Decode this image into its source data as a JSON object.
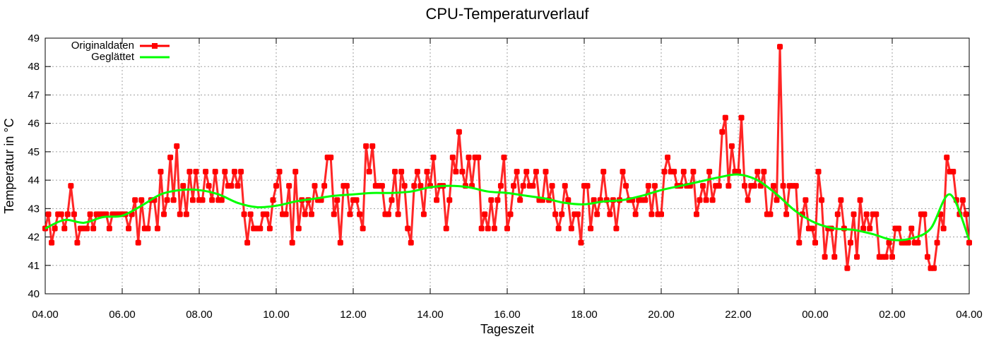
{
  "chart_data": {
    "type": "line",
    "title": "CPU-Temperaturverlauf",
    "xlabel": "Tageszeit",
    "ylabel": "Temperatur in °C",
    "ylim": [
      40,
      49
    ],
    "yticks": [
      "40",
      "41",
      "42",
      "43",
      "44",
      "45",
      "46",
      "47",
      "48",
      "49"
    ],
    "xticks": [
      "04.00",
      "06.00",
      "08.00",
      "10.00",
      "12.00",
      "14.00",
      "16.00",
      "18.00",
      "20.00",
      "22.00",
      "00.00",
      "02.00",
      "04.00"
    ],
    "xlim_hours": [
      0,
      24
    ],
    "grid": true,
    "legend_position": "top-left",
    "series": [
      {
        "name": "Originaldaten",
        "color": "#ff0000",
        "interval_minutes": 5,
        "values": [
          42.3,
          42.8,
          41.8,
          42.3,
          42.8,
          42.8,
          42.3,
          42.8,
          43.8,
          42.8,
          41.8,
          42.3,
          42.3,
          42.3,
          42.8,
          42.3,
          42.8,
          42.8,
          42.8,
          42.8,
          42.3,
          42.8,
          42.8,
          42.8,
          42.8,
          42.8,
          42.3,
          42.8,
          43.3,
          41.8,
          43.3,
          42.3,
          42.3,
          43.3,
          43.3,
          42.3,
          44.3,
          42.8,
          43.3,
          44.8,
          43.3,
          45.2,
          42.8,
          43.8,
          42.8,
          44.3,
          43.3,
          44.3,
          43.3,
          43.3,
          44.3,
          43.8,
          43.3,
          44.3,
          43.3,
          43.3,
          44.3,
          43.8,
          43.8,
          44.3,
          43.8,
          44.3,
          42.8,
          41.8,
          42.8,
          42.3,
          42.3,
          42.3,
          42.8,
          42.8,
          42.3,
          43.3,
          43.8,
          44.3,
          42.8,
          42.8,
          43.8,
          41.8,
          44.3,
          42.3,
          43.3,
          42.8,
          43.3,
          42.8,
          43.8,
          43.3,
          43.3,
          43.8,
          44.8,
          44.8,
          42.8,
          43.3,
          41.8,
          43.8,
          43.8,
          42.8,
          43.3,
          43.3,
          42.8,
          42.3,
          45.2,
          44.3,
          45.2,
          43.8,
          43.8,
          43.8,
          42.8,
          42.8,
          43.3,
          44.3,
          42.8,
          44.3,
          43.8,
          42.3,
          41.8,
          43.8,
          44.3,
          43.8,
          42.8,
          44.3,
          43.8,
          44.8,
          43.3,
          43.8,
          43.8,
          42.3,
          43.3,
          44.8,
          44.3,
          45.7,
          44.3,
          43.8,
          44.8,
          43.8,
          44.8,
          44.8,
          42.3,
          42.8,
          42.3,
          43.3,
          42.3,
          43.3,
          43.8,
          44.8,
          42.3,
          42.8,
          43.8,
          44.3,
          43.3,
          43.8,
          44.3,
          43.8,
          43.8,
          44.3,
          43.3,
          43.3,
          44.3,
          43.3,
          43.8,
          42.8,
          42.3,
          42.8,
          43.8,
          43.3,
          42.3,
          42.8,
          42.8,
          41.8,
          43.8,
          43.8,
          42.3,
          43.3,
          42.8,
          43.3,
          44.3,
          43.3,
          42.8,
          43.3,
          42.3,
          43.3,
          44.3,
          43.8,
          43.3,
          43.3,
          42.8,
          43.3,
          43.3,
          43.3,
          43.8,
          42.8,
          43.8,
          42.8,
          42.8,
          44.3,
          44.8,
          44.3,
          44.3,
          43.8,
          43.8,
          44.3,
          43.8,
          43.8,
          44.3,
          42.8,
          43.3,
          43.8,
          43.3,
          44.3,
          43.3,
          43.8,
          43.8,
          45.7,
          46.2,
          43.8,
          45.2,
          44.3,
          44.3,
          46.2,
          43.8,
          43.3,
          43.8,
          43.8,
          44.3,
          43.8,
          44.3,
          42.8,
          42.8,
          43.8,
          43.3,
          48.7,
          43.8,
          42.8,
          43.8,
          43.8,
          43.8,
          41.8,
          42.8,
          43.3,
          42.3,
          42.3,
          41.8,
          44.3,
          43.3,
          41.3,
          42.3,
          42.3,
          41.3,
          42.8,
          43.3,
          42.3,
          40.9,
          41.8,
          42.8,
          41.3,
          43.3,
          42.3,
          42.8,
          42.3,
          42.8,
          42.8,
          41.3,
          41.3,
          41.3,
          41.8,
          41.3,
          42.3,
          42.3,
          41.8,
          41.8,
          41.8,
          42.3,
          41.8,
          41.8,
          42.8,
          42.8,
          41.3,
          40.9,
          40.9,
          41.8,
          42.8,
          42.3,
          44.8,
          44.3,
          44.3,
          43.3,
          42.8,
          43.3,
          42.8,
          41.8
        ]
      },
      {
        "name": "Geglättet",
        "color": "#00ff00",
        "interval_minutes": 30,
        "values": [
          42.3,
          42.6,
          42.5,
          42.7,
          42.75,
          43.1,
          43.5,
          43.65,
          43.65,
          43.5,
          43.2,
          43.05,
          43.1,
          43.25,
          43.35,
          43.45,
          43.5,
          43.55,
          43.55,
          43.6,
          43.75,
          43.8,
          43.75,
          43.6,
          43.55,
          43.45,
          43.35,
          43.2,
          43.15,
          43.25,
          43.3,
          43.45,
          43.65,
          43.8,
          43.95,
          44.1,
          44.2,
          44.0,
          43.5,
          42.9,
          42.5,
          42.3,
          42.25,
          42.1,
          41.9,
          41.95,
          42.3,
          43.5,
          41.9
        ]
      }
    ]
  }
}
